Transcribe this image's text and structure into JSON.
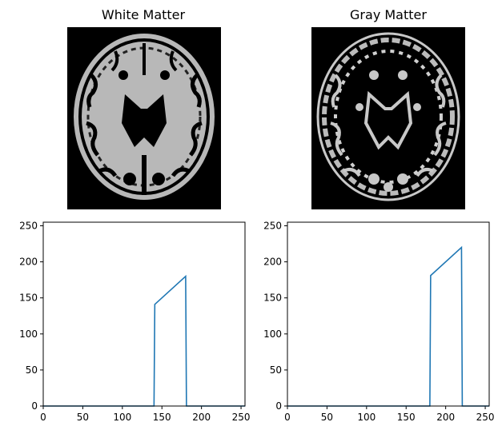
{
  "panels": [
    {
      "title": "White Matter"
    },
    {
      "title": "Gray Matter"
    }
  ],
  "colors": {
    "line": "#1f77b4",
    "image_bg": "#000000",
    "tissue": "#c0c0c0"
  },
  "chart_data": [
    {
      "type": "line",
      "x": [
        0,
        140,
        141,
        180,
        181,
        255
      ],
      "y": [
        0,
        0,
        141,
        180,
        0,
        0
      ],
      "xlim": [
        0,
        255
      ],
      "ylim": [
        0,
        255
      ],
      "xticks": [
        0,
        50,
        100,
        150,
        200,
        250
      ],
      "yticks": [
        0,
        50,
        100,
        150,
        200,
        250
      ],
      "grid": false
    },
    {
      "type": "line",
      "x": [
        0,
        180,
        181,
        220,
        221,
        255
      ],
      "y": [
        0,
        0,
        181,
        220,
        0,
        0
      ],
      "xlim": [
        0,
        255
      ],
      "ylim": [
        0,
        255
      ],
      "xticks": [
        0,
        50,
        100,
        150,
        200,
        250
      ],
      "yticks": [
        0,
        50,
        100,
        150,
        200,
        250
      ],
      "grid": false
    }
  ]
}
